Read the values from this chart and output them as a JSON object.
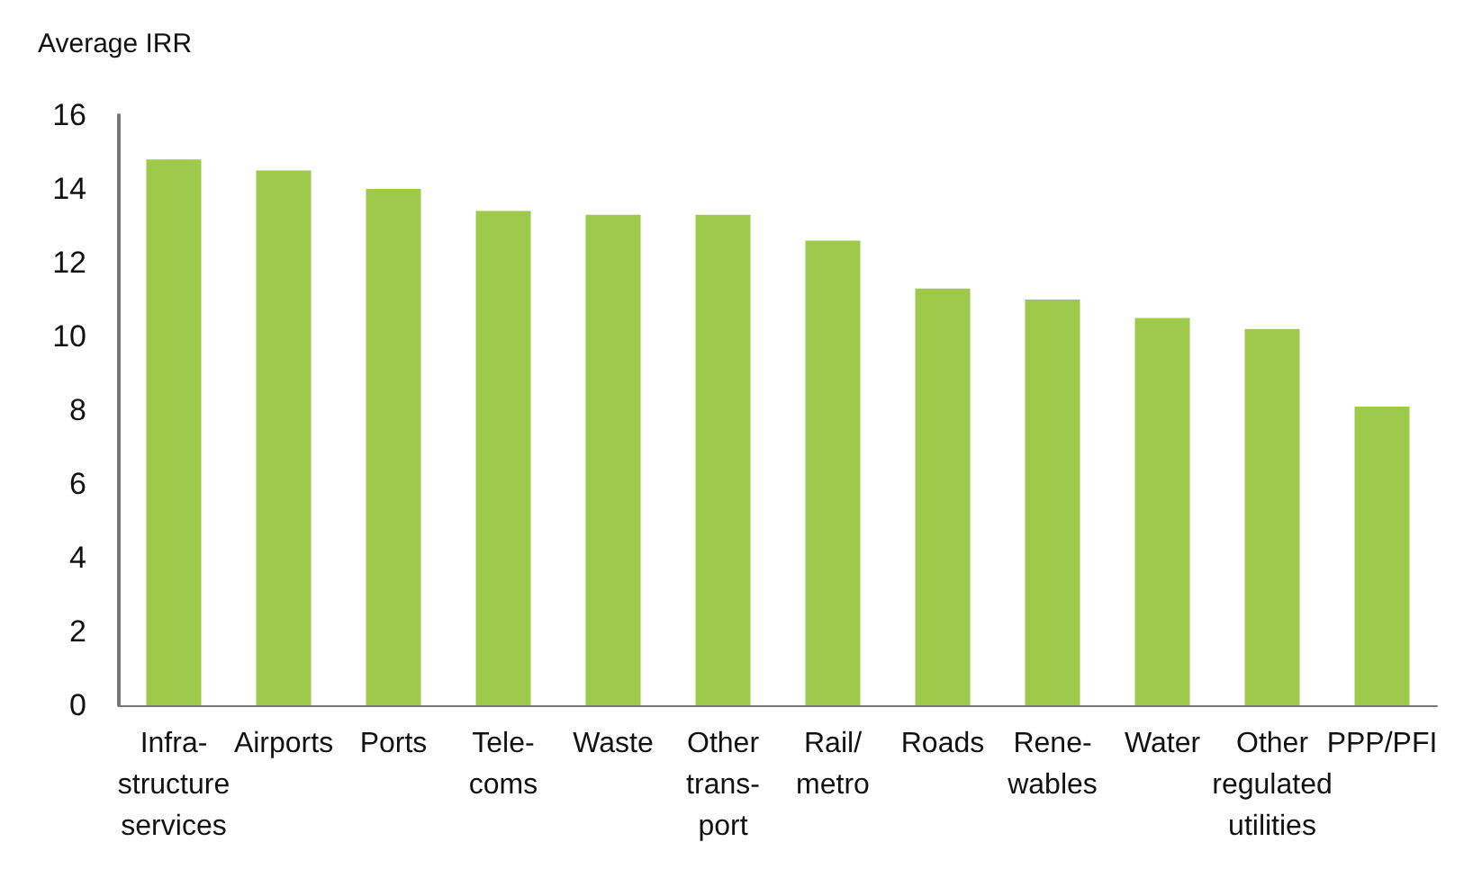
{
  "chart_data": {
    "type": "bar",
    "ylabel": "Average IRR",
    "categories": [
      "Infra-\nstructure\nservices",
      "Airports",
      "Ports",
      "Tele-\ncoms",
      "Waste",
      "Other\ntrans-\nport",
      "Rail/\nmetro",
      "Roads",
      "Rene-\nwables",
      "Water",
      "Other\nregulated\nutilities",
      "PPP/PFI"
    ],
    "values": [
      14.8,
      14.5,
      14.0,
      13.4,
      13.3,
      13.3,
      12.6,
      11.3,
      11.0,
      10.5,
      10.2,
      8.1
    ],
    "color": "#9dca4b",
    "ylim": [
      0,
      16
    ],
    "yticks": [
      0,
      2,
      4,
      6,
      8,
      10,
      12,
      14,
      16
    ],
    "grid": false,
    "legend": false
  }
}
